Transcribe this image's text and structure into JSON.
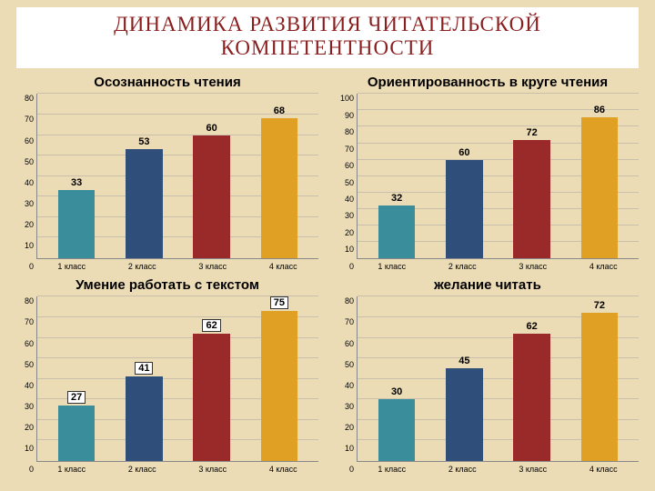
{
  "page": {
    "background_color": "#ecdcb6",
    "title": "ДИНАМИКА  РАЗВИТИЯ ЧИТАТЕЛЬСКОЙ  КОМПЕТЕНТНОСТИ",
    "title_color": "#8a1e1e",
    "title_fontsize": 23
  },
  "charts": [
    {
      "id": "chart1",
      "title": "Осознанность чтения",
      "title_fontsize": 15,
      "type": "bar",
      "categories": [
        "1 класс",
        "2 класс",
        "3 класс",
        "4 класс"
      ],
      "values": [
        33,
        53,
        60,
        68
      ],
      "bar_colors": [
        "#3a8e9b",
        "#2f4e7a",
        "#9a2a2a",
        "#e0a024"
      ],
      "ylim": [
        0,
        80
      ],
      "ytick_step": 10,
      "label_fontsize": 9,
      "value_fontsize": 11,
      "value_boxed": false,
      "grid_color": "#c8c0ac",
      "background_color": "#ecdcb6"
    },
    {
      "id": "chart2",
      "title": "Ориентированность в круге чтения",
      "title_fontsize": 15,
      "type": "bar",
      "categories": [
        "1 класс",
        "2 класс",
        "3 класс",
        "4 класс"
      ],
      "values": [
        32,
        60,
        72,
        86
      ],
      "bar_colors": [
        "#3a8e9b",
        "#2f4e7a",
        "#9a2a2a",
        "#e0a024"
      ],
      "ylim": [
        0,
        100
      ],
      "ytick_step": 10,
      "label_fontsize": 9,
      "value_fontsize": 11,
      "value_boxed": false,
      "grid_color": "#c8c0ac",
      "background_color": "#ecdcb6"
    },
    {
      "id": "chart3",
      "title": "Умение работать с текстом",
      "title_fontsize": 15,
      "type": "bar",
      "categories": [
        "1 класс",
        "2 класс",
        "3 класс",
        "4 класс"
      ],
      "values": [
        27,
        41,
        62,
        75
      ],
      "bar_colors": [
        "#3a8e9b",
        "#2f4e7a",
        "#9a2a2a",
        "#e0a024"
      ],
      "ylim": [
        0,
        80
      ],
      "ytick_step": 10,
      "label_fontsize": 9,
      "value_fontsize": 11,
      "value_boxed": true,
      "grid_color": "#c8c0ac",
      "background_color": "#ecdcb6"
    },
    {
      "id": "chart4",
      "title": "желание читать",
      "title_fontsize": 15,
      "type": "bar",
      "categories": [
        "1 класс",
        "2 класс",
        "3 класс",
        "4 класс"
      ],
      "values": [
        30,
        45,
        62,
        72
      ],
      "bar_colors": [
        "#3a8e9b",
        "#2f4e7a",
        "#9a2a2a",
        "#e0a024"
      ],
      "ylim": [
        0,
        80
      ],
      "ytick_step": 10,
      "label_fontsize": 9,
      "value_fontsize": 11,
      "value_boxed": false,
      "grid_color": "#c8c0ac",
      "background_color": "#ecdcb6"
    }
  ]
}
